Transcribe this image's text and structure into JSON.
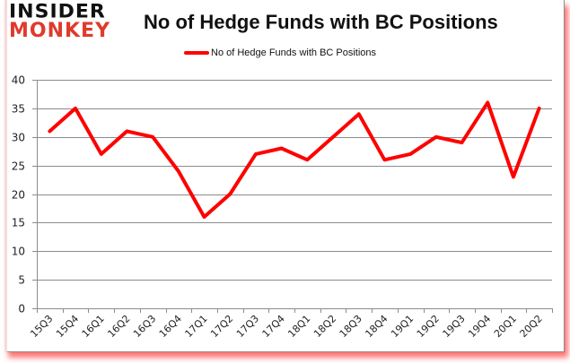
{
  "logo": {
    "line1": "INSIDER",
    "line2": "MONKEY"
  },
  "chart_data": {
    "type": "line",
    "title": "No of Hedge Funds with BC Positions",
    "xlabel": "",
    "ylabel": "",
    "ylim": [
      0,
      40
    ],
    "yticks": [
      0,
      5,
      10,
      15,
      20,
      25,
      30,
      35,
      40
    ],
    "grid": true,
    "legend_position": "top",
    "categories": [
      "15Q3",
      "15Q4",
      "16Q1",
      "16Q2",
      "16Q3",
      "16Q4",
      "17Q1",
      "17Q2",
      "17Q3",
      "17Q4",
      "18Q1",
      "18Q2",
      "18Q3",
      "18Q4",
      "19Q1",
      "19Q2",
      "19Q3",
      "19Q4",
      "20Q1",
      "20Q2"
    ],
    "series": [
      {
        "name": "No of Hedge Funds with BC Positions",
        "color": "#ff0000",
        "values": [
          31,
          35,
          27,
          31,
          30,
          24,
          16,
          20,
          27,
          28,
          26,
          30,
          34,
          26,
          27,
          30,
          29,
          36,
          23,
          35
        ]
      }
    ]
  },
  "colors": {
    "line": "#ff0000",
    "grid": "#8c8c8c",
    "frame_shadow": "#ff0000",
    "logo_red": "#e03a2b"
  }
}
